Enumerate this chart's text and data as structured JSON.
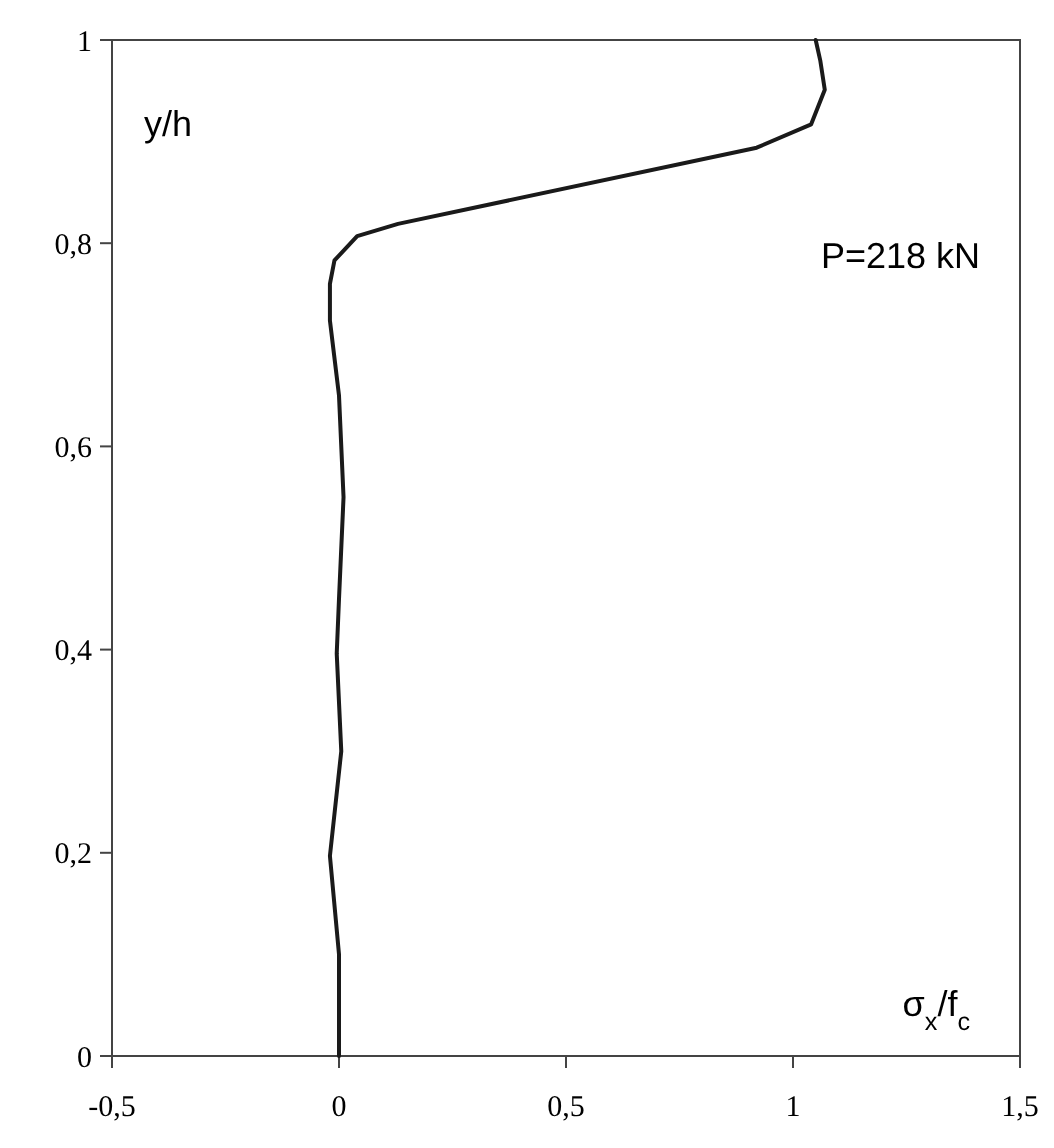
{
  "chart_data": {
    "type": "line",
    "xlabel": "σ$_{x}$/f$_{c}$",
    "ylabel": "y/h",
    "annotations": [
      "P=218 kN"
    ],
    "xlim": [
      -0.5,
      1.5
    ],
    "xticks": [
      {
        "value": -0.5,
        "label": "-0,5"
      },
      0,
      {
        "value": 0.5,
        "label": "0,5"
      },
      1,
      {
        "value": 1.5,
        "label": "1,5"
      }
    ],
    "ylim": [
      0,
      1
    ],
    "yticks": [
      0,
      {
        "value": 0.2,
        "label": "0,2"
      },
      {
        "value": 0.4,
        "label": "0,4"
      },
      {
        "value": 0.6,
        "label": "0,6"
      },
      {
        "value": 0.8,
        "label": "0,8"
      },
      1
    ],
    "grid": false,
    "marker": "none",
    "line_style": "solid",
    "series": [
      {
        "color": "#1a1a1a",
        "x": [
          0,
          0,
          0,
          -0.02,
          0.005,
          -0.005,
          0,
          0.01,
          0,
          -0.02,
          -0.02,
          -0.01,
          0.04,
          0.13,
          0.92,
          1.04,
          1.07,
          1.06,
          1.05
        ],
        "values": [
          0,
          0.05,
          0.1,
          0.197,
          0.3,
          0.396,
          0.45,
          0.55,
          0.65,
          0.724,
          0.76,
          0.783,
          0.807,
          0.819,
          0.894,
          0.917,
          0.951,
          0.98,
          1
        ]
      }
    ]
  }
}
